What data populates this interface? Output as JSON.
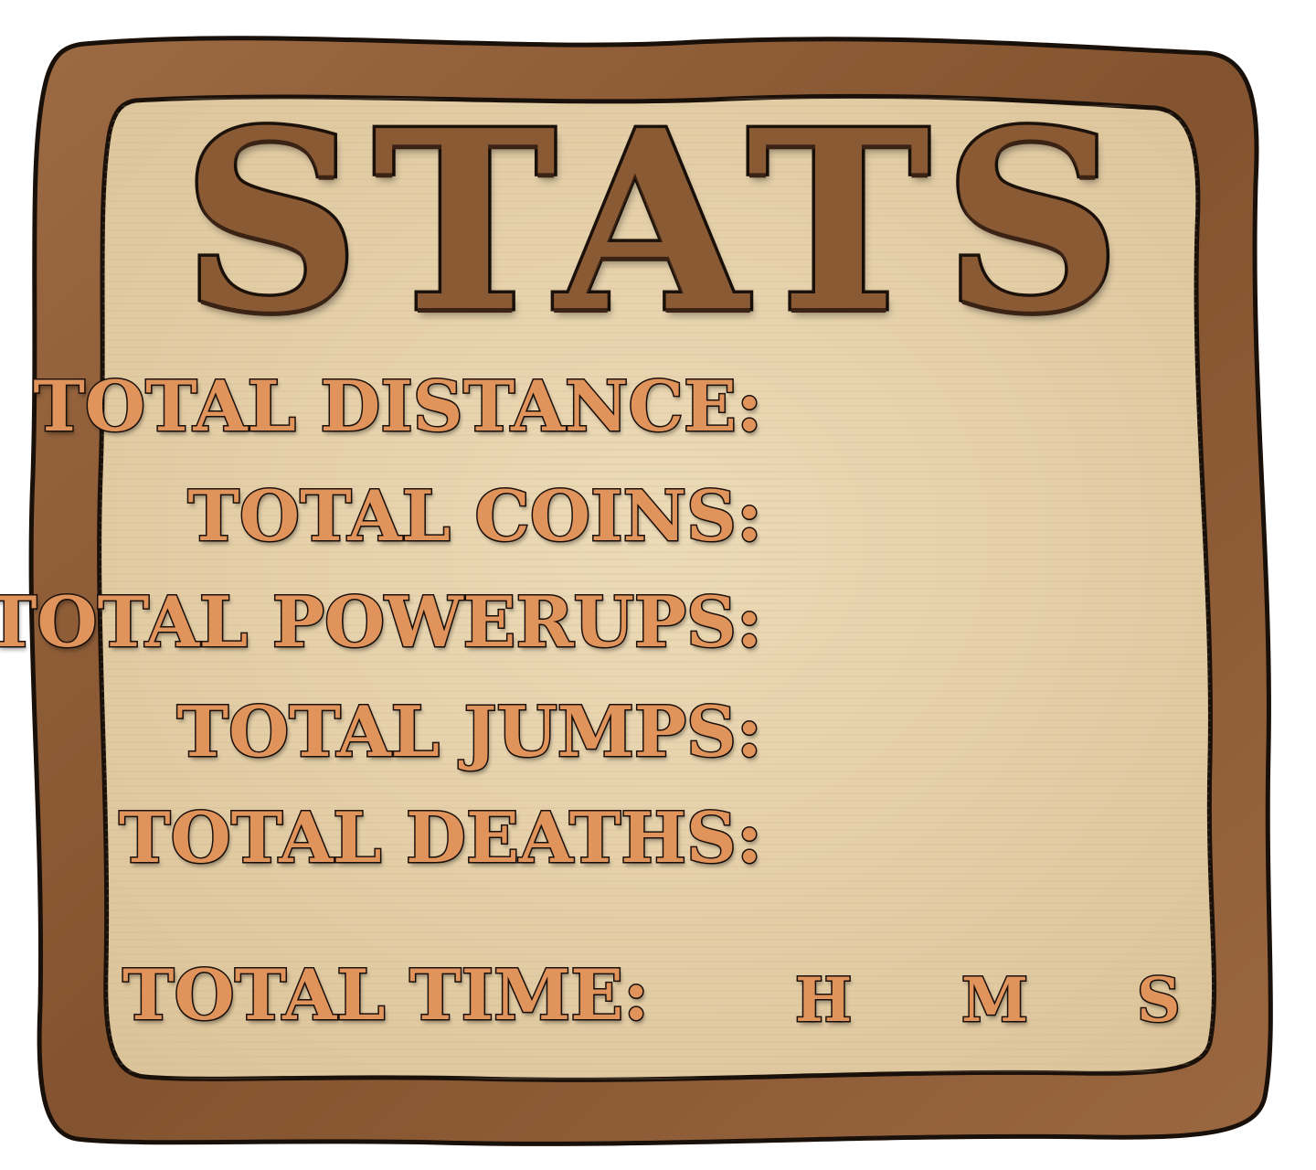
{
  "panel": {
    "title": "STATS",
    "frame_color": "#8b5a36",
    "paper_color": "#e8d3ac",
    "text_color": "#e0935a"
  },
  "stats": [
    {
      "label": "TOTAL DISTANCE:",
      "value": ""
    },
    {
      "label": "TOTAL COINS:",
      "value": ""
    },
    {
      "label": "TOTAL POWERUPS:",
      "value": ""
    },
    {
      "label": "TOTAL JUMPS:",
      "value": ""
    },
    {
      "label": "TOTAL DEATHS:",
      "value": ""
    }
  ],
  "time": {
    "label": "TOTAL TIME:",
    "hours_unit": "H",
    "minutes_unit": "M",
    "seconds_unit": "S"
  }
}
